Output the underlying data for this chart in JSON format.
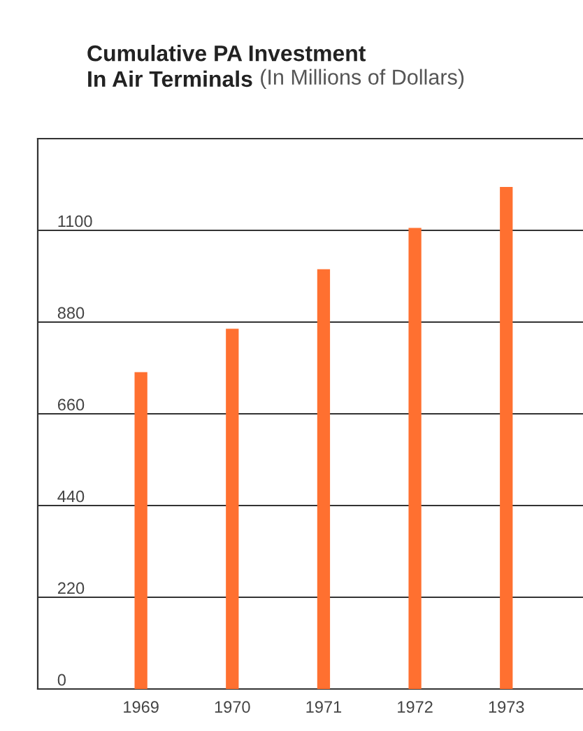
{
  "chart_data": {
    "type": "bar",
    "title": "Cumulative PA Investment\nIn Air Terminals",
    "subtitle": "(In Millions of Dollars)",
    "categories": [
      "1969",
      "1970",
      "1971",
      "1972",
      "1973"
    ],
    "values": [
      760,
      864,
      1007,
      1106,
      1204
    ],
    "color": "#ff7030",
    "ylim": [
      0,
      1320
    ],
    "yticks": [
      0,
      220,
      440,
      660,
      880,
      1100
    ],
    "grid": "y"
  }
}
